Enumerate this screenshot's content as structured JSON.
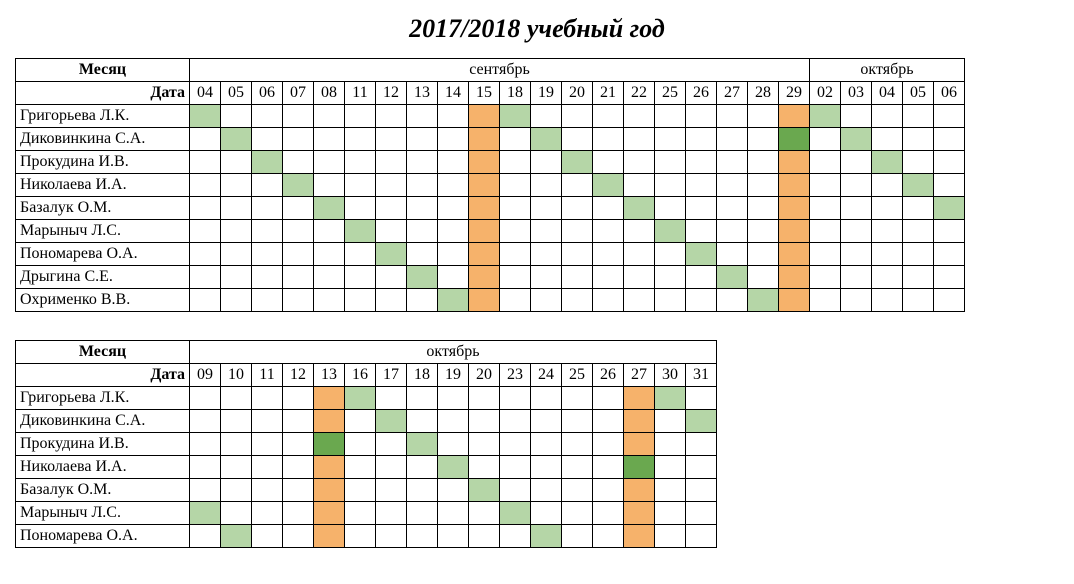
{
  "title": "2017/2018 учебный год",
  "labels": {
    "month": "Месяц",
    "date": "Дата"
  },
  "colors": {
    "light_green": "#b5d6a7",
    "orange": "#f6b26b",
    "dark_green": "#6aa84f",
    "border": "#000000",
    "background": "#ffffff",
    "text": "#000000"
  },
  "typography": {
    "title_fontsize_pt": 19,
    "title_style": "bold italic",
    "body_fontsize_pt": 12,
    "font_family": "Times New Roman"
  },
  "cell_color_map": {
    "1": "light_green",
    "2": "orange",
    "3": "dark_green",
    "0": "none"
  },
  "table1": {
    "months": [
      {
        "name": "сентябрь",
        "span": 20
      },
      {
        "name": "октябрь",
        "span": 5
      }
    ],
    "dates": [
      "04",
      "05",
      "06",
      "07",
      "08",
      "11",
      "12",
      "13",
      "14",
      "15",
      "18",
      "19",
      "20",
      "21",
      "22",
      "25",
      "26",
      "27",
      "28",
      "29",
      "02",
      "03",
      "04",
      "05",
      "06"
    ],
    "rows": [
      {
        "name": "Григорьева Л.К.",
        "cells": [
          1,
          0,
          0,
          0,
          0,
          0,
          0,
          0,
          0,
          2,
          1,
          0,
          0,
          0,
          0,
          0,
          0,
          0,
          0,
          2,
          1,
          0,
          0,
          0,
          0
        ]
      },
      {
        "name": "Диковинкина С.А.",
        "cells": [
          0,
          1,
          0,
          0,
          0,
          0,
          0,
          0,
          0,
          2,
          0,
          1,
          0,
          0,
          0,
          0,
          0,
          0,
          0,
          3,
          0,
          1,
          0,
          0,
          0
        ]
      },
      {
        "name": "Прокудина И.В.",
        "cells": [
          0,
          0,
          1,
          0,
          0,
          0,
          0,
          0,
          0,
          2,
          0,
          0,
          1,
          0,
          0,
          0,
          0,
          0,
          0,
          2,
          0,
          0,
          1,
          0,
          0
        ]
      },
      {
        "name": "Николаева И.А.",
        "cells": [
          0,
          0,
          0,
          1,
          0,
          0,
          0,
          0,
          0,
          2,
          0,
          0,
          0,
          1,
          0,
          0,
          0,
          0,
          0,
          2,
          0,
          0,
          0,
          1,
          0
        ]
      },
      {
        "name": "Базалук О.М.",
        "cells": [
          0,
          0,
          0,
          0,
          1,
          0,
          0,
          0,
          0,
          2,
          0,
          0,
          0,
          0,
          1,
          0,
          0,
          0,
          0,
          2,
          0,
          0,
          0,
          0,
          1
        ]
      },
      {
        "name": "Марыныч Л.С.",
        "cells": [
          0,
          0,
          0,
          0,
          0,
          1,
          0,
          0,
          0,
          2,
          0,
          0,
          0,
          0,
          0,
          1,
          0,
          0,
          0,
          2,
          0,
          0,
          0,
          0,
          0
        ]
      },
      {
        "name": "Пономарева О.А.",
        "cells": [
          0,
          0,
          0,
          0,
          0,
          0,
          1,
          0,
          0,
          2,
          0,
          0,
          0,
          0,
          0,
          0,
          1,
          0,
          0,
          2,
          0,
          0,
          0,
          0,
          0
        ]
      },
      {
        "name": "Дрыгина С.Е.",
        "cells": [
          0,
          0,
          0,
          0,
          0,
          0,
          0,
          1,
          0,
          2,
          0,
          0,
          0,
          0,
          0,
          0,
          0,
          1,
          0,
          2,
          0,
          0,
          0,
          0,
          0
        ]
      },
      {
        "name": "Охрименко В.В.",
        "cells": [
          0,
          0,
          0,
          0,
          0,
          0,
          0,
          0,
          1,
          2,
          0,
          0,
          0,
          0,
          0,
          0,
          0,
          0,
          1,
          2,
          0,
          0,
          0,
          0,
          0
        ]
      }
    ]
  },
  "table2": {
    "months": [
      {
        "name": "октябрь",
        "span": 17
      }
    ],
    "dates": [
      "09",
      "10",
      "11",
      "12",
      "13",
      "16",
      "17",
      "18",
      "19",
      "20",
      "23",
      "24",
      "25",
      "26",
      "27",
      "30",
      "31"
    ],
    "rows": [
      {
        "name": "Григорьева Л.К.",
        "cells": [
          0,
          0,
          0,
          0,
          2,
          1,
          0,
          0,
          0,
          0,
          0,
          0,
          0,
          0,
          2,
          1,
          0
        ]
      },
      {
        "name": "Диковинкина С.А.",
        "cells": [
          0,
          0,
          0,
          0,
          2,
          0,
          1,
          0,
          0,
          0,
          0,
          0,
          0,
          0,
          2,
          0,
          1
        ]
      },
      {
        "name": "Прокудина И.В.",
        "cells": [
          0,
          0,
          0,
          0,
          3,
          0,
          0,
          1,
          0,
          0,
          0,
          0,
          0,
          0,
          2,
          0,
          0
        ]
      },
      {
        "name": "Николаева И.А.",
        "cells": [
          0,
          0,
          0,
          0,
          2,
          0,
          0,
          0,
          1,
          0,
          0,
          0,
          0,
          0,
          3,
          0,
          0
        ]
      },
      {
        "name": "Базалук О.М.",
        "cells": [
          0,
          0,
          0,
          0,
          2,
          0,
          0,
          0,
          0,
          1,
          0,
          0,
          0,
          0,
          2,
          0,
          0
        ]
      },
      {
        "name": "Марыныч Л.С.",
        "cells": [
          1,
          0,
          0,
          0,
          2,
          0,
          0,
          0,
          0,
          0,
          1,
          0,
          0,
          0,
          2,
          0,
          0
        ]
      },
      {
        "name": "Пономарева О.А.",
        "cells": [
          0,
          1,
          0,
          0,
          2,
          0,
          0,
          0,
          0,
          0,
          0,
          1,
          0,
          0,
          2,
          0,
          0
        ]
      }
    ]
  }
}
